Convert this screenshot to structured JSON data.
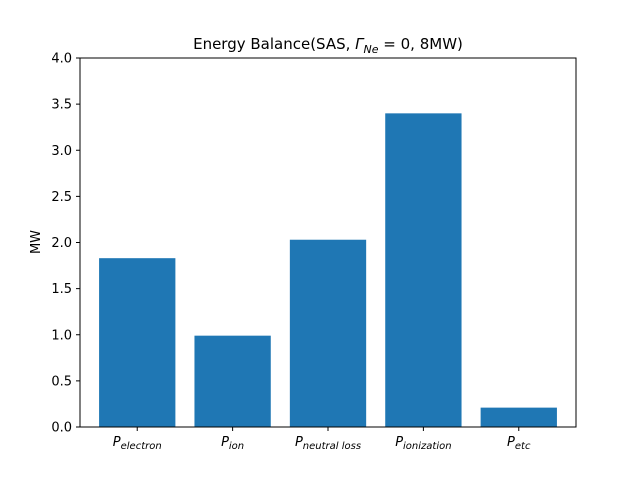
{
  "chart_data": {
    "type": "bar",
    "title_prefix": "Energy Balance(SAS, ",
    "title_symbol": "Γ",
    "title_subscript": "Ne",
    "title_suffix": " = 0, 8MW)",
    "xlabel": "",
    "ylabel": "MW",
    "ylim": [
      0,
      4.0
    ],
    "yticks": [
      "0.0",
      "0.5",
      "1.0",
      "1.5",
      "2.0",
      "2.5",
      "3.0",
      "3.5",
      "4.0"
    ],
    "categories": [
      {
        "symbol": "P",
        "subscript": "electron"
      },
      {
        "symbol": "P",
        "subscript": "ion"
      },
      {
        "symbol": "P",
        "subscript": "neutral loss"
      },
      {
        "symbol": "P",
        "subscript": "ionization"
      },
      {
        "symbol": "P",
        "subscript": "etc"
      }
    ],
    "values": [
      1.83,
      0.99,
      2.03,
      3.4,
      0.21
    ],
    "grid": false,
    "bar_color": "#1f77b4"
  }
}
